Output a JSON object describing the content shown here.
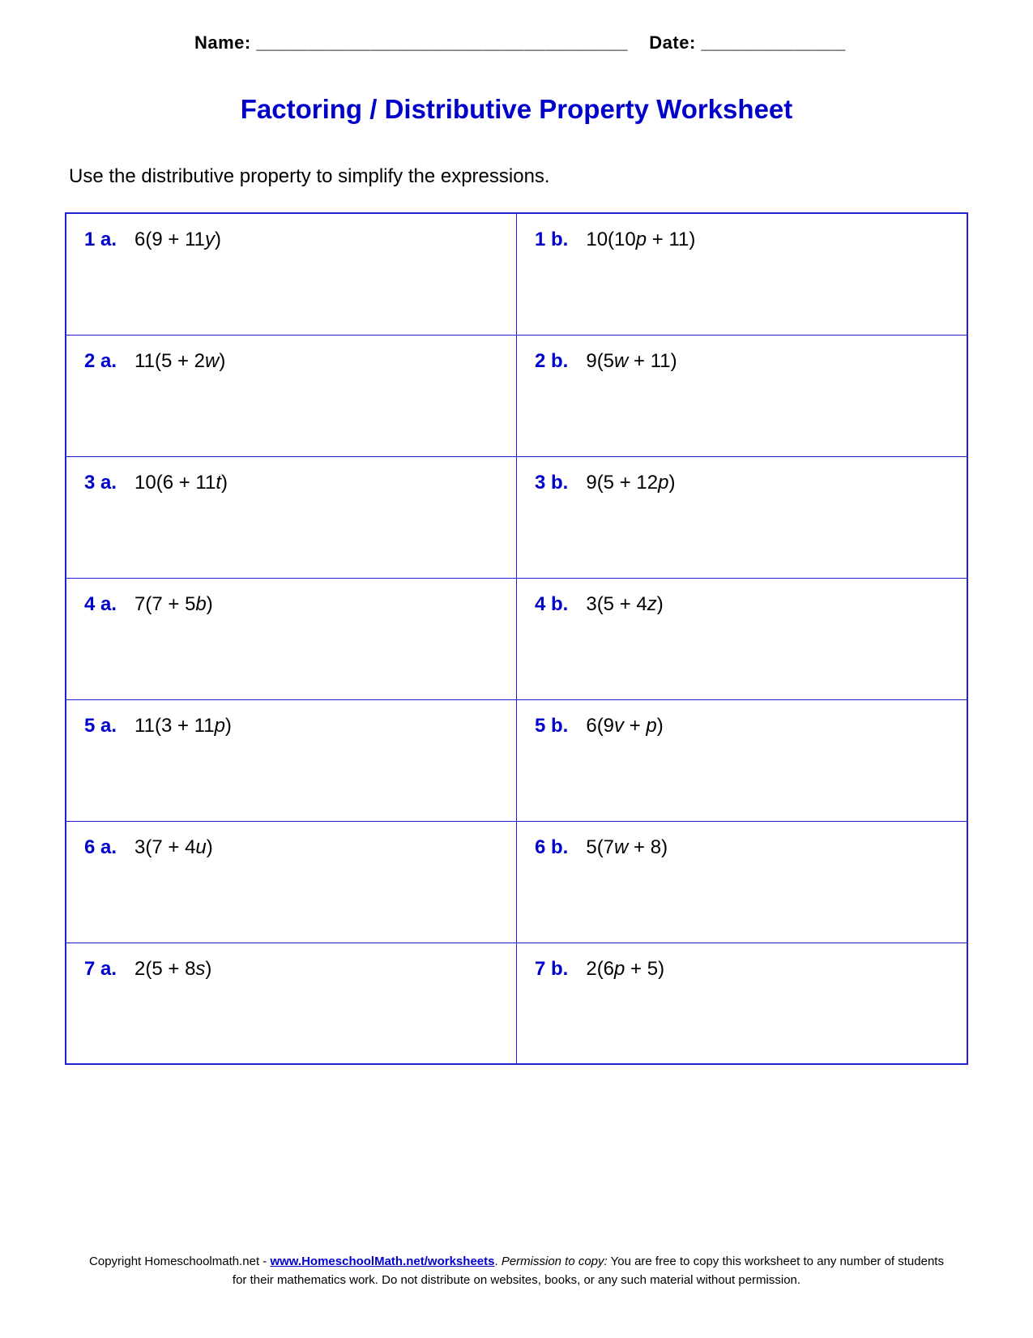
{
  "header": {
    "name_label": "Name: ____________________________________",
    "date_label": "Date: ______________"
  },
  "title": "Factoring / Distributive Property Worksheet",
  "instructions": "Use the distributive property to simplify the expressions.",
  "border_color": "#2020d0",
  "label_color": "#0000cc",
  "title_color": "#0000cc",
  "problems": [
    [
      {
        "label": "1 a.",
        "prefix": "6(9 + 11",
        "var": "y",
        "suffix": ")"
      },
      {
        "label": "1 b.",
        "prefix": "10(10",
        "var": "p",
        "suffix": " + 11)"
      }
    ],
    [
      {
        "label": "2 a.",
        "prefix": "11(5 + 2",
        "var": "w",
        "suffix": ")"
      },
      {
        "label": "2 b.",
        "prefix": "9(5",
        "var": "w",
        "suffix": " + 11)"
      }
    ],
    [
      {
        "label": "3 a.",
        "prefix": "10(6 + 11",
        "var": "t",
        "suffix": ")"
      },
      {
        "label": "3 b.",
        "prefix": "9(5 + 12",
        "var": "p",
        "suffix": ")"
      }
    ],
    [
      {
        "label": "4 a.",
        "prefix": "7(7 + 5",
        "var": "b",
        "suffix": ")"
      },
      {
        "label": "4 b.",
        "prefix": "3(5 + 4",
        "var": "z",
        "suffix": ")"
      }
    ],
    [
      {
        "label": "5 a.",
        "prefix": "11(3 + 11",
        "var": "p",
        "suffix": ")"
      },
      {
        "label": "5 b.",
        "prefix": "6(9",
        "var": "v",
        "suffix": " + ",
        "prefix2": "",
        "var2": "p",
        "suffix2": ")"
      }
    ],
    [
      {
        "label": "6 a.",
        "prefix": "3(7 + 4",
        "var": "u",
        "suffix": ")"
      },
      {
        "label": "6 b.",
        "prefix": "5(7",
        "var": "w",
        "suffix": " + 8)"
      }
    ],
    [
      {
        "label": "7 a.",
        "prefix": "2(5 + 8",
        "var": "s",
        "suffix": ")"
      },
      {
        "label": "7 b.",
        "prefix": "2(6",
        "var": "p",
        "suffix": " + 5)"
      }
    ]
  ],
  "footer": {
    "copyright_prefix": "Copyright Homeschoolmath.net - ",
    "link_text": "www.HomeschoolMath.net/worksheets",
    "separator": ".  ",
    "permission_label": "Permission to copy:",
    "permission_text": " You are free to copy this worksheet to any number of students for their mathematics work. Do not distribute on websites, books, or any such material without permission."
  }
}
